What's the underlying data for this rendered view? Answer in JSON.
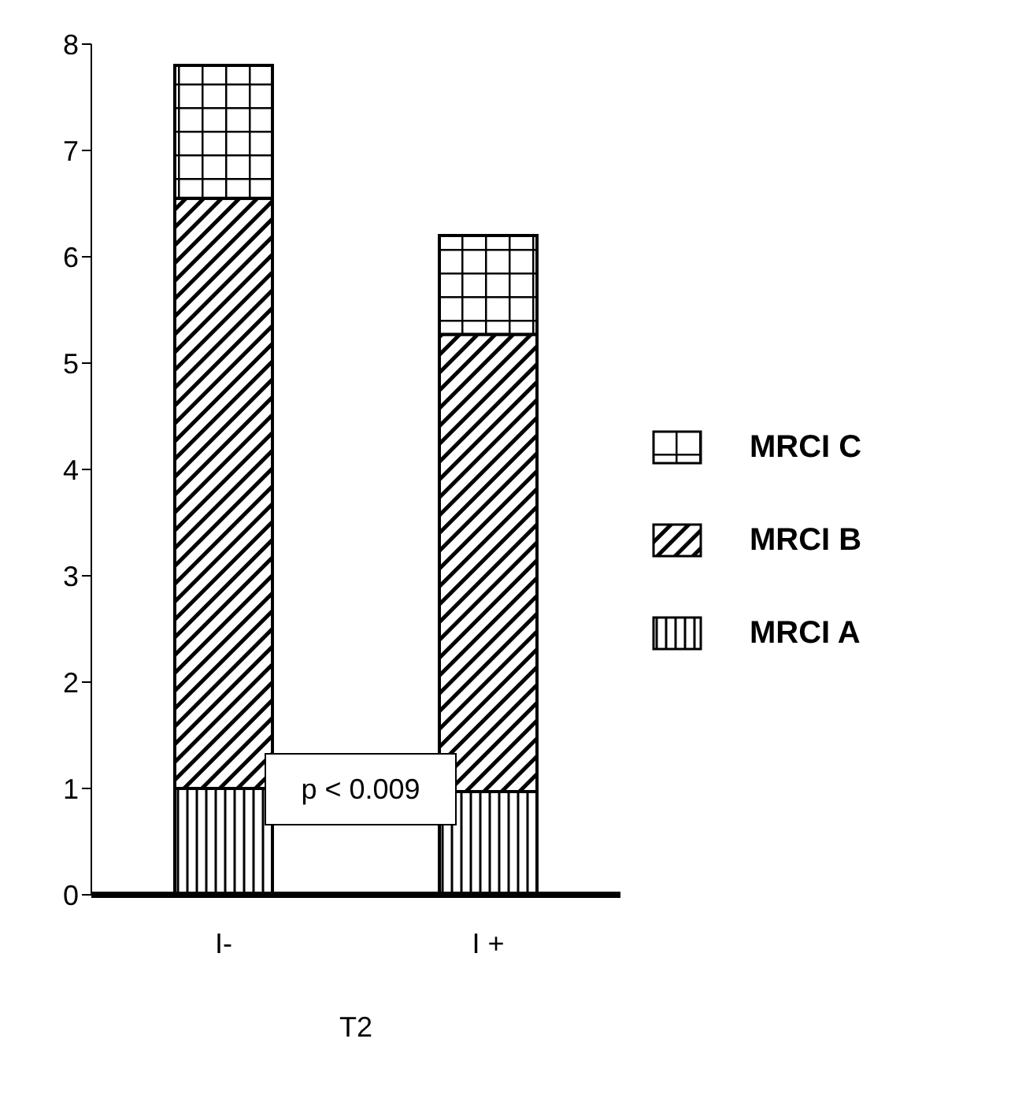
{
  "chart_data": {
    "type": "bar",
    "stacked": true,
    "xlabel": "T2",
    "categories": [
      "I-",
      "I +"
    ],
    "series": [
      {
        "name": "MRCI A",
        "color": "#000000",
        "values": [
          1.0,
          0.97
        ]
      },
      {
        "name": "MRCI B",
        "color": "#000000",
        "values": [
          5.55,
          4.3
        ]
      },
      {
        "name": "MRCI C",
        "color": "#000000",
        "values": [
          1.25,
          0.93
        ]
      }
    ],
    "ylim": [
      0,
      8
    ],
    "yticks": [
      0,
      1,
      2,
      3,
      4,
      5,
      6,
      7,
      8
    ],
    "grid": false,
    "legend": "right",
    "annotations": [
      "p < 0.009"
    ]
  }
}
